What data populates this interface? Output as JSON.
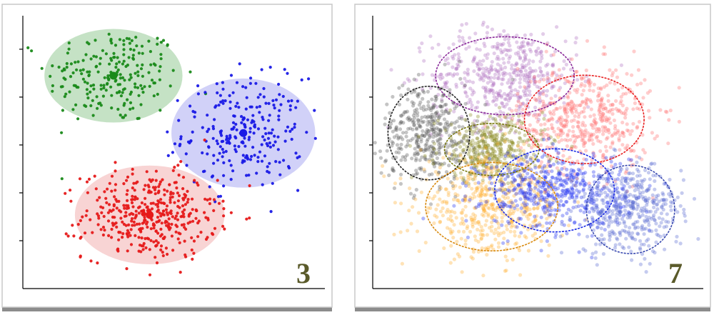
{
  "chart_data": [
    {
      "type": "scatter",
      "panel_label": "3",
      "grid": false,
      "legend": "none",
      "clusters": [
        {
          "color": "#1a8a1a",
          "fill": "#7fbf7f",
          "center": [
            0.3,
            0.78
          ],
          "spread": [
            0.11,
            0.09
          ],
          "n": 220,
          "ellipse_axes": [
            0.24,
            0.18
          ]
        },
        {
          "color": "#1a1ae6",
          "fill": "#9a9af0",
          "center": [
            0.73,
            0.57
          ],
          "spread": [
            0.1,
            0.1
          ],
          "n": 260,
          "ellipse_axes": [
            0.25,
            0.21
          ]
        },
        {
          "color": "#e61a1a",
          "fill": "#f0a0a0",
          "center": [
            0.42,
            0.27
          ],
          "spread": [
            0.11,
            0.08
          ],
          "n": 420,
          "ellipse_axes": [
            0.26,
            0.19
          ]
        }
      ]
    },
    {
      "type": "scatter",
      "panel_label": "7",
      "grid": false,
      "legend": "none",
      "clusters": [
        {
          "color": "#8a2a9a",
          "fill": "#b070c0",
          "center": [
            0.4,
            0.78
          ],
          "spread": [
            0.11,
            0.09
          ],
          "n": 520,
          "ellipse_axes": [
            0.22,
            0.15
          ]
        },
        {
          "color": "#e82020",
          "fill": "#ff7070",
          "center": [
            0.64,
            0.62
          ],
          "spread": [
            0.1,
            0.1
          ],
          "n": 520,
          "ellipse_axes": [
            0.19,
            0.17
          ]
        },
        {
          "color": "#222222",
          "fill": "#555555",
          "center": [
            0.17,
            0.57
          ],
          "spread": [
            0.07,
            0.09
          ],
          "n": 420,
          "ellipse_axes": [
            0.13,
            0.18
          ]
        },
        {
          "color": "#7a7a10",
          "fill": "#8a8a20",
          "center": [
            0.36,
            0.51
          ],
          "spread": [
            0.08,
            0.06
          ],
          "n": 380,
          "ellipse_axes": [
            0.15,
            0.1
          ]
        },
        {
          "color": "#d88a10",
          "fill": "#ffb030",
          "center": [
            0.36,
            0.3
          ],
          "spread": [
            0.11,
            0.09
          ],
          "n": 520,
          "ellipse_axes": [
            0.21,
            0.17
          ]
        },
        {
          "color": "#1a2ae6",
          "fill": "#2030f0",
          "center": [
            0.55,
            0.36
          ],
          "spread": [
            0.11,
            0.07
          ],
          "n": 520,
          "ellipse_axes": [
            0.19,
            0.16
          ]
        },
        {
          "color": "#3a4ab0",
          "fill": "#5a6ad0",
          "center": [
            0.78,
            0.29
          ],
          "spread": [
            0.08,
            0.08
          ],
          "n": 440,
          "ellipse_axes": [
            0.14,
            0.17
          ]
        }
      ]
    }
  ]
}
